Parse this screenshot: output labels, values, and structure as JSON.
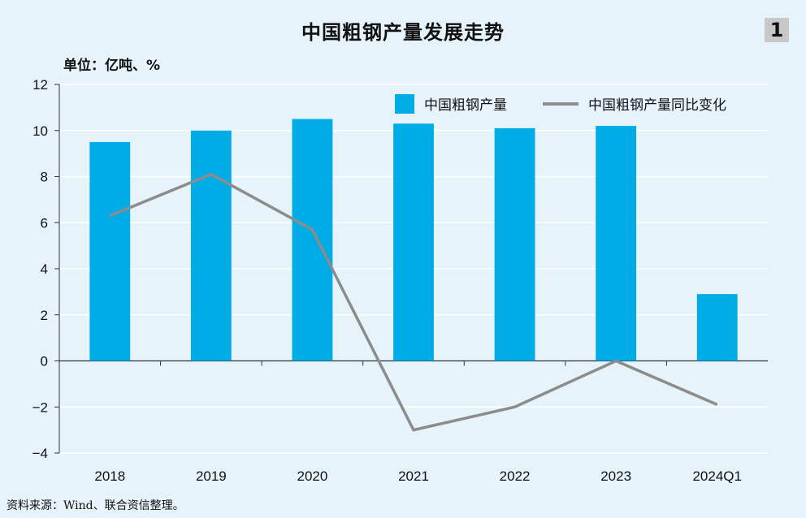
{
  "header": {
    "title": "中国粗钢产量发展走势",
    "badge": "1"
  },
  "unit_label": "单位：亿吨、%",
  "source_label": "资料来源：Wind、联合资信整理。",
  "colors": {
    "background": "#e6f3fa",
    "bar": "#00ace6",
    "line": "#8c8c8c",
    "grid": "#ffffff",
    "axis": "#333333"
  },
  "chart_data": {
    "type": "bar",
    "categories": [
      "2018",
      "2019",
      "2020",
      "2021",
      "2022",
      "2023",
      "2024Q1"
    ],
    "series": [
      {
        "name": "中国粗钢产量",
        "type": "bar",
        "values": [
          9.5,
          10.0,
          10.5,
          10.3,
          10.1,
          10.2,
          2.9
        ]
      },
      {
        "name": "中国粗钢产量同比变化",
        "type": "line",
        "values": [
          6.3,
          8.1,
          5.7,
          -3.0,
          -2.0,
          0.0,
          -1.9
        ]
      }
    ],
    "title": "中国粗钢产量发展走势",
    "xlabel": "",
    "ylabel": "",
    "ylim": [
      -4,
      12
    ],
    "yticks": [
      "12",
      "10",
      "8",
      "6",
      "4",
      "2",
      "0",
      "−2",
      "−4"
    ],
    "ytick_values": [
      12,
      10,
      8,
      6,
      4,
      2,
      0,
      -2,
      -4
    ],
    "grid": true,
    "legend_position": "top-right"
  }
}
